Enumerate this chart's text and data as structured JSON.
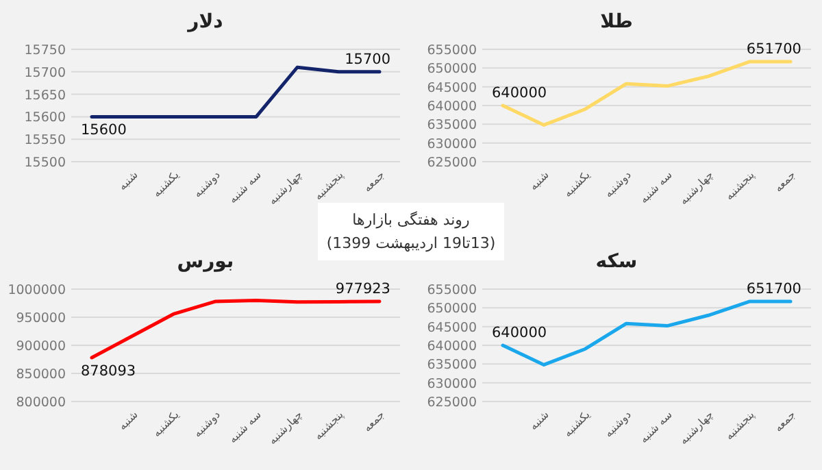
{
  "chart_data": [
    {
      "type": "line",
      "title": "دلار",
      "categories": [
        null,
        "شنبه",
        "یکشنبه",
        "دوشنبه",
        "سه شنبه",
        "چهارشنبه",
        "پنجشنبه",
        "جمعه"
      ],
      "values": [
        15600,
        15600,
        15600,
        15600,
        15600,
        15710,
        15700,
        15700
      ],
      "value_labels": [
        "15600",
        null,
        null,
        null,
        null,
        null,
        null,
        "15700"
      ],
      "color": "#13246b",
      "ylim": [
        15500,
        15750
      ],
      "yticks": [
        15500,
        15550,
        15600,
        15650,
        15700,
        15750
      ],
      "grid": "y"
    },
    {
      "type": "line",
      "title": "طلا",
      "categories": [
        null,
        "شنبه",
        "یکشنبه",
        "دوشنبه",
        "سه شنبه",
        "چهارشنبه",
        "پنجشنبه",
        "جمعه"
      ],
      "values": [
        640000,
        634800,
        639000,
        645800,
        645200,
        647800,
        651700,
        651700
      ],
      "value_labels": [
        "640000",
        null,
        null,
        null,
        null,
        null,
        null,
        "651700"
      ],
      "color": "#ffd966",
      "ylim": [
        625000,
        655000
      ],
      "yticks": [
        625000,
        630000,
        635000,
        640000,
        645000,
        650000,
        655000
      ],
      "grid": "y"
    },
    {
      "type": "other",
      "annotations": [
        "روند هفتگی بازارها",
        "(13تا19 اردیبهشت 1399)"
      ]
    },
    {
      "type": "line",
      "title": "بورس",
      "categories": [
        null,
        "شنبه",
        "یکشنبه",
        "دوشنبه",
        "سه شنبه",
        "چهارشنبه",
        "پنجشنبه",
        "جمعه"
      ],
      "values": [
        878093,
        917000,
        956000,
        978000,
        980000,
        977000,
        977500,
        977923
      ],
      "value_labels": [
        "878093",
        null,
        null,
        null,
        null,
        null,
        null,
        "977923"
      ],
      "color": "#ff0000",
      "ylim": [
        800000,
        1000000
      ],
      "yticks": [
        800000,
        850000,
        900000,
        950000,
        1000000
      ],
      "grid": "y"
    },
    {
      "type": "line",
      "title": "سکه",
      "categories": [
        null,
        "شنبه",
        "یکشنبه",
        "دوشنبه",
        "سه شنبه",
        "چهارشنبه",
        "پنجشنبه",
        "جمعه"
      ],
      "values": [
        640000,
        634800,
        639000,
        645800,
        645200,
        648000,
        651700,
        651700
      ],
      "value_labels": [
        "640000",
        null,
        null,
        null,
        null,
        null,
        null,
        "651700"
      ],
      "color": "#1aa7ec",
      "ylim": [
        625000,
        655000
      ],
      "yticks": [
        625000,
        630000,
        635000,
        640000,
        645000,
        650000,
        655000
      ],
      "grid": "y"
    }
  ]
}
